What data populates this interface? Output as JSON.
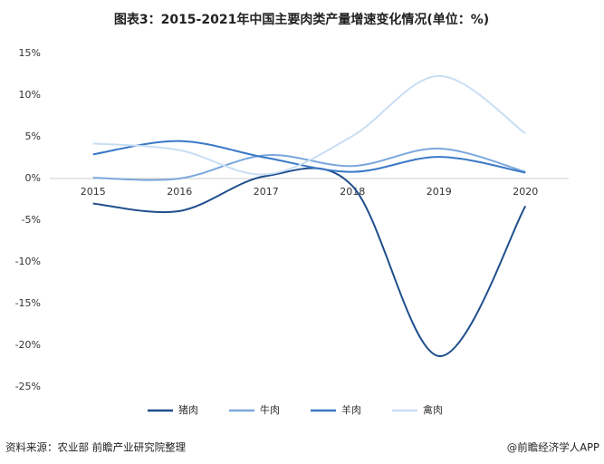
{
  "chart_data": {
    "type": "line",
    "title": "图表3：2015-2021年中国主要肉类产量增速变化情况(单位：%)",
    "categories": [
      "2015",
      "2016",
      "2017",
      "2018",
      "2019",
      "2020"
    ],
    "series": [
      {
        "name": "猪肉",
        "color": "#1f4e8c",
        "values": [
          -3.0,
          -3.9,
          0.3,
          -0.9,
          -21.3,
          -3.3
        ]
      },
      {
        "name": "牛肉",
        "color": "#7aa7dd",
        "values": [
          0.1,
          0.0,
          2.8,
          1.5,
          3.6,
          0.8
        ]
      },
      {
        "name": "羊肉",
        "color": "#3a78c6",
        "values": [
          2.9,
          4.5,
          2.5,
          0.8,
          2.6,
          0.7
        ]
      },
      {
        "name": "禽肉",
        "color": "#c9def4",
        "values": [
          4.2,
          3.4,
          0.5,
          5.1,
          12.3,
          5.4
        ]
      }
    ],
    "ylim": [
      -25,
      15
    ],
    "yticks": [
      {
        "value": -25,
        "label": "-25%"
      },
      {
        "value": -20,
        "label": "-20%"
      },
      {
        "value": -15,
        "label": "-15%"
      },
      {
        "value": -10,
        "label": "-10%"
      },
      {
        "value": -5,
        "label": "-5%"
      },
      {
        "value": 0,
        "label": "0%"
      },
      {
        "value": 5,
        "label": "5%"
      },
      {
        "value": 10,
        "label": "10%"
      },
      {
        "value": 15,
        "label": "15%"
      }
    ],
    "grid": false,
    "legend": "bottom",
    "source": "资料来源：农业部 前瞻产业研究院整理",
    "credit": "@前瞻经济学人APP"
  }
}
